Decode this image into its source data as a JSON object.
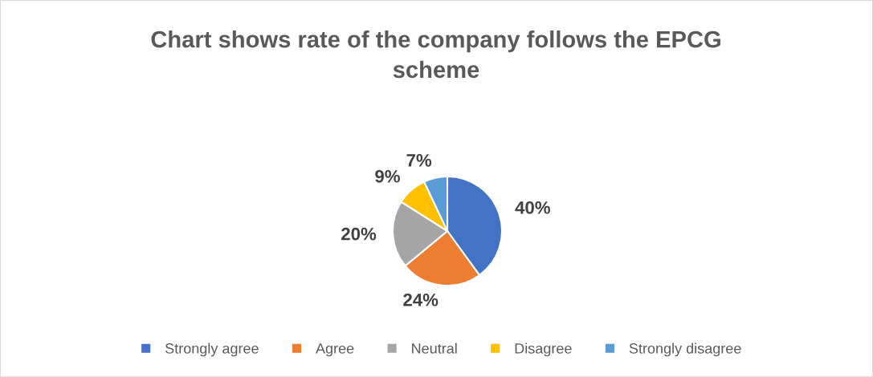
{
  "chart_data": {
    "type": "pie",
    "title": "Chart shows rate of the company follows the EPCG scheme",
    "categories": [
      "Strongly agree",
      "Agree",
      "Neutral",
      "Disagree",
      "Strongly disagree"
    ],
    "values": [
      40,
      24,
      20,
      9,
      7
    ],
    "value_labels": [
      "40%",
      "24%",
      "20%",
      "9%",
      "7%"
    ],
    "colors": [
      "#4472c4",
      "#ed7d31",
      "#a5a5a5",
      "#ffc000",
      "#5b9bd5"
    ],
    "legend": "bottom"
  }
}
